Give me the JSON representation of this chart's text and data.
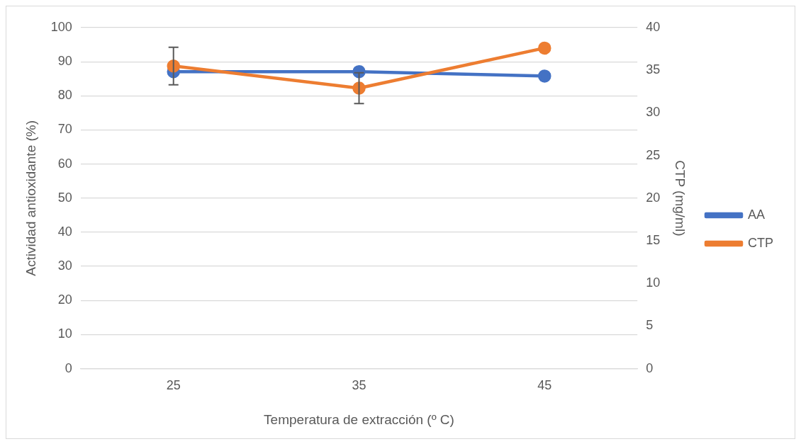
{
  "chart_data": {
    "type": "line",
    "xlabel": "Temperatura de extracción (º C)",
    "ylabel": "Actividad antioxidante (%)",
    "y2label": "CTP (mg/ml)",
    "categories": [
      "25",
      "35",
      "45"
    ],
    "series": [
      {
        "name": "AA",
        "color": "#4472c4",
        "values": [
          87.1,
          87.1,
          85.8
        ]
      },
      {
        "name": "CTP",
        "color": "#ed7d31",
        "values": [
          35.5,
          32.9,
          37.6
        ],
        "axis": "y2",
        "errors": [
          2.2,
          1.8,
          null
        ]
      }
    ],
    "ylim": [
      0,
      100
    ],
    "yticks": [
      0,
      10,
      20,
      30,
      40,
      50,
      60,
      70,
      80,
      90,
      100
    ],
    "y2lim": [
      0,
      40
    ],
    "y2ticks": [
      0,
      5,
      10,
      15,
      20,
      25,
      30,
      35,
      40
    ],
    "grid": "y",
    "legend": "right",
    "marker": "circle",
    "line_style": "solid"
  }
}
